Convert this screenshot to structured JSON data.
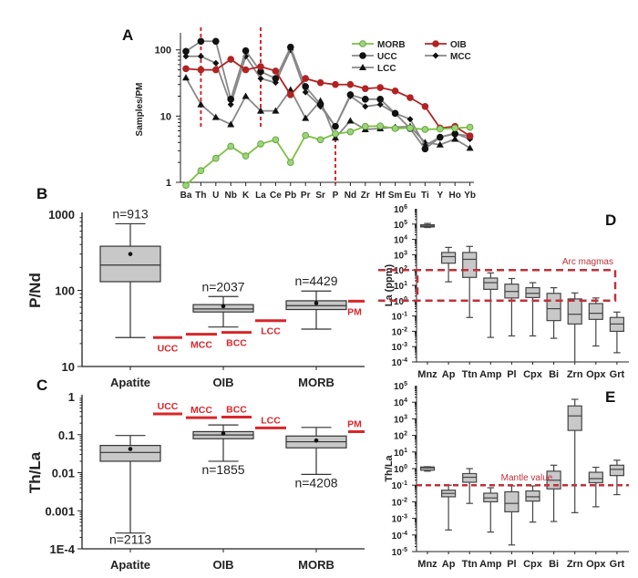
{
  "chart_data": [
    {
      "panel": "A",
      "type": "line",
      "ylabel": "Samples/PM",
      "yscale": "log",
      "ylim": [
        1,
        170
      ],
      "yticks": [
        "1",
        "10",
        "100"
      ],
      "categories": [
        "Ba",
        "Th",
        "U",
        "Nb",
        "K",
        "La",
        "Ce",
        "Pb",
        "Pr",
        "Sr",
        "P",
        "Nd",
        "Zr",
        "Hf",
        "Sm",
        "Eu",
        "Ti",
        "Y",
        "Ho",
        "Yb"
      ],
      "dashed_markers": [
        "Th",
        "La",
        "P"
      ],
      "series": [
        {
          "name": "MORB",
          "color": "#7dc142",
          "marker": "open-circle",
          "values": [
            0.9,
            1.5,
            2.3,
            3.5,
            2.5,
            3.8,
            4.4,
            2.0,
            5.1,
            4.4,
            5.4,
            5.8,
            7.0,
            7.1,
            6.5,
            6.6,
            6.3,
            6.4,
            6.6,
            6.8
          ]
        },
        {
          "name": "OIB",
          "color": "#b22222",
          "marker": "circle",
          "values": [
            52,
            50,
            50,
            72,
            50,
            56,
            48,
            21,
            37,
            32,
            30,
            30,
            26,
            27,
            24,
            19,
            14,
            6.6,
            7.0,
            5.0
          ]
        },
        {
          "name": "UCC",
          "color": "#888888",
          "marker": "circle",
          "values": [
            95,
            135,
            135,
            18,
            97,
            47,
            37,
            110,
            28,
            15,
            7,
            21,
            18,
            18,
            11,
            6.5,
            3.2,
            4.8,
            5.4,
            5.0
          ]
        },
        {
          "name": "MCC",
          "color": "#888888",
          "marker": "diamond",
          "values": [
            80,
            80,
            63,
            15,
            80,
            37,
            32,
            100,
            23,
            14,
            7,
            20,
            14,
            15,
            11,
            9,
            3.6,
            4.8,
            5.5,
            4.5
          ]
        },
        {
          "name": "LCC",
          "color": "#888888",
          "marker": "triangle",
          "values": [
            38,
            15,
            9.6,
            7.5,
            20,
            12,
            12,
            25,
            9.3,
            17,
            4.7,
            8.5,
            6.3,
            6.5,
            6.8,
            7,
            4,
            3.7,
            4.5,
            3.3
          ]
        }
      ]
    },
    {
      "panel": "B",
      "type": "box",
      "ylabel": "P/Nd",
      "yscale": "log",
      "ylim": [
        10,
        1000
      ],
      "yticks": [
        "10",
        "100",
        "1000"
      ],
      "categories": [
        "Apatite",
        "OIB",
        "MORB"
      ],
      "boxes": [
        {
          "min": 24,
          "q1": 130,
          "median": 215,
          "q3": 380,
          "max": 750,
          "mean": 300,
          "n": "n=913",
          "npos": "top"
        },
        {
          "min": 33,
          "q1": 52,
          "median": 57,
          "q3": 65,
          "max": 83,
          "mean": 62,
          "n": "n=2037",
          "npos": "top"
        },
        {
          "min": 31,
          "q1": 56,
          "median": 63,
          "q3": 73,
          "max": 98,
          "mean": 68,
          "n": "n=4429",
          "npos": "top"
        }
      ],
      "references": [
        {
          "label": "UCC",
          "value": 24
        },
        {
          "label": "MCC",
          "value": 26.5
        },
        {
          "label": "BCC",
          "value": 28
        },
        {
          "label": "LCC",
          "value": 40
        },
        {
          "label": "PM",
          "value": 72
        }
      ]
    },
    {
      "panel": "C",
      "type": "box",
      "ylabel": "Th/La",
      "yscale": "log",
      "ylim": [
        0.0001,
        1
      ],
      "yticks": [
        "1E-4",
        "0.001",
        "0.01",
        "0.1",
        "1"
      ],
      "categories": [
        "Apatite",
        "OIB",
        "MORB"
      ],
      "boxes": [
        {
          "min": 0.00026,
          "q1": 0.02,
          "median": 0.034,
          "q3": 0.052,
          "max": 0.095,
          "mean": 0.042,
          "n": "n=2113",
          "npos": "bottom"
        },
        {
          "min": 0.02,
          "q1": 0.078,
          "median": 0.098,
          "q3": 0.12,
          "max": 0.18,
          "mean": 0.108,
          "n": "n=1855",
          "npos": "bottom"
        },
        {
          "min": 0.009,
          "q1": 0.045,
          "median": 0.065,
          "q3": 0.092,
          "max": 0.155,
          "mean": 0.07,
          "n": "n=4208",
          "npos": "bottom"
        }
      ],
      "references": [
        {
          "label": "UCC",
          "value": 0.35
        },
        {
          "label": "MCC",
          "value": 0.28
        },
        {
          "label": "BCC",
          "value": 0.29
        },
        {
          "label": "LCC",
          "value": 0.15
        },
        {
          "label": "PM",
          "value": 0.12
        }
      ]
    },
    {
      "panel": "D",
      "type": "box",
      "ylabel": "La (ppm)",
      "yscale": "log",
      "ylim": [
        0.0001,
        1000000
      ],
      "yexp": [
        -4,
        -3,
        -2,
        -1,
        0,
        1,
        2,
        3,
        4,
        5,
        6
      ],
      "categories": [
        "Mnz",
        "Ap",
        "Ttn",
        "Amp",
        "Pl",
        "Cpx",
        "Bi",
        "Zrn",
        "Opx",
        "Grt"
      ],
      "boxes": [
        {
          "min": 60000,
          "q1": 65000,
          "median": 75000,
          "q3": 90000,
          "max": 110000
        },
        {
          "min": 17,
          "q1": 280,
          "median": 750,
          "q3": 1400,
          "max": 3000
        },
        {
          "min": 0.08,
          "q1": 33,
          "median": 500,
          "q3": 1400,
          "max": 3500
        },
        {
          "min": 0.004,
          "q1": 5.5,
          "median": 15,
          "q3": 30,
          "max": 65
        },
        {
          "min": 0.005,
          "q1": 1.5,
          "median": 4,
          "q3": 12,
          "max": 28
        },
        {
          "min": 0.005,
          "q1": 1.6,
          "median": 3,
          "q3": 7,
          "max": 15
        },
        {
          "min": 0.0035,
          "q1": 0.05,
          "median": 0.3,
          "q3": 3,
          "max": 7
        },
        {
          "min": 0.0001,
          "q1": 0.03,
          "median": 0.13,
          "q3": 1.3,
          "max": 3.2
        },
        {
          "min": 0.0011,
          "q1": 0.06,
          "median": 0.15,
          "q3": 0.65,
          "max": 1.5
        },
        {
          "min": 0.0004,
          "q1": 0.01,
          "median": 0.03,
          "q3": 0.08,
          "max": 0.18
        }
      ],
      "region": {
        "label": "Arc magmas",
        "min": 1,
        "max": 100,
        "color": "#c0303a"
      }
    },
    {
      "panel": "E",
      "type": "box",
      "ylabel": "Th/La",
      "yscale": "log",
      "ylim": [
        1e-05,
        100000
      ],
      "yexp": [
        -5,
        -4,
        -3,
        -2,
        -1,
        0,
        1,
        2,
        3,
        4,
        5
      ],
      "categories": [
        "Mnz",
        "Ap",
        "Ttn",
        "Amp",
        "Pl",
        "Cpx",
        "Bi",
        "Zrn",
        "Opx",
        "Grt"
      ],
      "boxes": [
        {
          "min": 0.7,
          "q1": 0.8,
          "median": 1.1,
          "q3": 1.25,
          "max": 1.3
        },
        {
          "min": 0.0002,
          "q1": 0.02,
          "median": 0.032,
          "q3": 0.05,
          "max": 0.1
        },
        {
          "min": 0.008,
          "q1": 0.15,
          "median": 0.3,
          "q3": 0.5,
          "max": 1
        },
        {
          "min": 0.00015,
          "q1": 0.01,
          "median": 0.017,
          "q3": 0.033,
          "max": 0.07
        },
        {
          "min": 2.5e-05,
          "q1": 0.0025,
          "median": 0.008,
          "q3": 0.04,
          "max": 0.09
        },
        {
          "min": 0.0006,
          "q1": 0.011,
          "median": 0.02,
          "q3": 0.045,
          "max": 0.09
        },
        {
          "min": 0.00065,
          "q1": 0.06,
          "median": 0.2,
          "q3": 0.7,
          "max": 1.6
        },
        {
          "min": 0.0022,
          "q1": 200,
          "median": 1500,
          "q3": 6000,
          "max": 15000
        },
        {
          "min": 0.005,
          "q1": 0.14,
          "median": 0.25,
          "q3": 0.6,
          "max": 1.2
        },
        {
          "min": 0.027,
          "q1": 0.38,
          "median": 0.9,
          "q3": 1.6,
          "max": 3.2
        }
      ],
      "reference_line": {
        "label": "Mantle value",
        "value": 0.1,
        "color": "#c0303a"
      }
    }
  ],
  "colors": {
    "box_fill": "#c8c8c8",
    "reference": "#d9262b"
  }
}
